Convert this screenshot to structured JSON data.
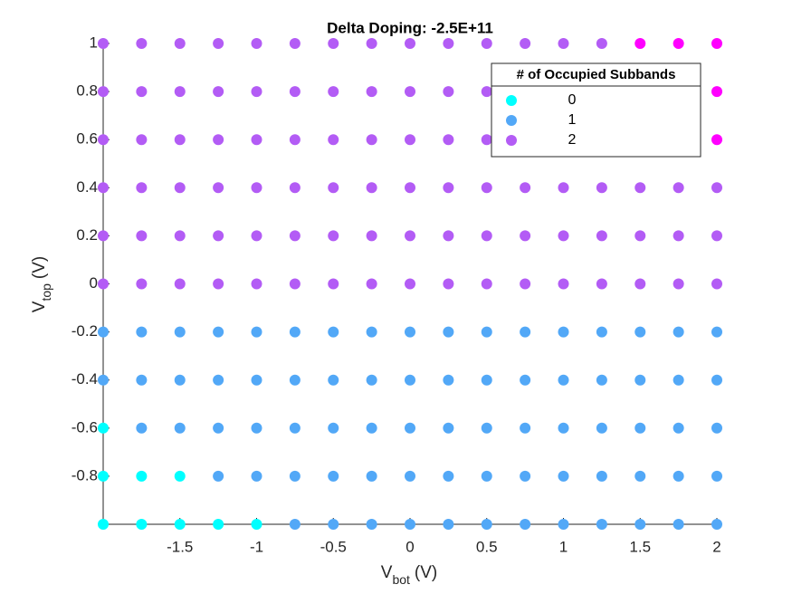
{
  "chart_data": {
    "type": "scatter",
    "title": "Delta Doping: -2.5E+11",
    "xlabel": "V",
    "xlabel_sub": "bot",
    "xlabel_unit": "(V)",
    "ylabel": "V",
    "ylabel_sub": "top",
    "ylabel_unit": "(V)",
    "xlim": [
      -2,
      2
    ],
    "ylim": [
      -1,
      1
    ],
    "xticks": [
      -1.5,
      -1,
      -0.5,
      0,
      0.5,
      1,
      1.5,
      2
    ],
    "yticks": [
      -0.8,
      -0.6,
      -0.4,
      -0.2,
      0,
      0.2,
      0.4,
      0.6,
      0.8,
      1
    ],
    "grid": false,
    "legend_title": "# of Occupied Subbands",
    "legend_corner": "northeast",
    "series": [
      {
        "name": "0",
        "color": "#00ffff",
        "x": [
          -2,
          -1.75,
          -1.5,
          -1.25,
          -1,
          -2,
          -1.75,
          -1.5,
          -2
        ],
        "y": [
          -1,
          -1,
          -1,
          -1,
          -1,
          -0.8,
          -0.8,
          -0.8,
          -0.6
        ]
      },
      {
        "name": "1",
        "color": "#52a8f7",
        "x": [
          -0.75,
          -0.5,
          -0.25,
          0,
          0.25,
          0.5,
          0.75,
          1,
          1.25,
          1.5,
          1.75,
          2,
          -1.25,
          -1,
          -0.75,
          -0.5,
          -0.25,
          0,
          0.25,
          0.5,
          0.75,
          1,
          1.25,
          1.5,
          1.75,
          2,
          -1.75,
          -1.5,
          -1.25,
          -1,
          -0.75,
          -0.5,
          -0.25,
          0,
          0.25,
          0.5,
          0.75,
          1,
          1.25,
          1.5,
          1.75,
          2,
          -2,
          -1.75,
          -1.5,
          -1.25,
          -1,
          -0.75,
          -0.5,
          -0.25,
          0,
          0.25,
          0.5,
          0.75,
          1,
          1.25,
          1.5,
          1.75,
          2,
          -2,
          -1.75,
          -1.5,
          -1.25,
          -1,
          -0.75,
          -0.5,
          -0.25,
          0,
          0.25,
          0.5,
          0.75,
          1,
          1.25,
          1.5,
          1.75,
          2
        ],
        "y": [
          -1,
          -1,
          -1,
          -1,
          -1,
          -1,
          -1,
          -1,
          -1,
          -1,
          -1,
          -1,
          -0.8,
          -0.8,
          -0.8,
          -0.8,
          -0.8,
          -0.8,
          -0.8,
          -0.8,
          -0.8,
          -0.8,
          -0.8,
          -0.8,
          -0.8,
          -0.8,
          -0.6,
          -0.6,
          -0.6,
          -0.6,
          -0.6,
          -0.6,
          -0.6,
          -0.6,
          -0.6,
          -0.6,
          -0.6,
          -0.6,
          -0.6,
          -0.6,
          -0.6,
          -0.6,
          -0.4,
          -0.4,
          -0.4,
          -0.4,
          -0.4,
          -0.4,
          -0.4,
          -0.4,
          -0.4,
          -0.4,
          -0.4,
          -0.4,
          -0.4,
          -0.4,
          -0.4,
          -0.4,
          -0.4,
          -0.2,
          -0.2,
          -0.2,
          -0.2,
          -0.2,
          -0.2,
          -0.2,
          -0.2,
          -0.2,
          -0.2,
          -0.2,
          -0.2,
          -0.2,
          -0.2,
          -0.2,
          -0.2,
          -0.2
        ]
      },
      {
        "name": "2",
        "color": "#b35cf5",
        "x": [
          -2,
          -1.75,
          -1.5,
          -1.25,
          -1,
          -0.75,
          -0.5,
          -0.25,
          0,
          0.25,
          0.5,
          0.75,
          1,
          1.25,
          1.5,
          1.75,
          2,
          -2,
          -1.75,
          -1.5,
          -1.25,
          -1,
          -0.75,
          -0.5,
          -0.25,
          0,
          0.25,
          0.5,
          0.75,
          1,
          1.25,
          1.5,
          1.75,
          2,
          -2,
          -1.75,
          -1.5,
          -1.25,
          -1,
          -0.75,
          -0.5,
          -0.25,
          0,
          0.25,
          0.5,
          0.75,
          1,
          1.25,
          1.5,
          1.75,
          2,
          -2,
          -1.75,
          -1.5,
          -1.25,
          -1,
          -0.75,
          -0.5,
          -0.25,
          0,
          0.25,
          0.5,
          0.75,
          1,
          1.25,
          1.5,
          1.75,
          -2,
          -1.75,
          -1.5,
          -1.25,
          -1,
          -0.75,
          -0.5,
          -0.25,
          0,
          0.25,
          0.5,
          0.75,
          1,
          1.25,
          1.5,
          1.75,
          -2,
          -1.75,
          -1.5,
          -1.25,
          -1,
          -0.75,
          -0.5,
          -0.25,
          0,
          0.25,
          0.5,
          0.75,
          1,
          1.25
        ],
        "y": [
          0,
          0,
          0,
          0,
          0,
          0,
          0,
          0,
          0,
          0,
          0,
          0,
          0,
          0,
          0,
          0,
          0,
          0.2,
          0.2,
          0.2,
          0.2,
          0.2,
          0.2,
          0.2,
          0.2,
          0.2,
          0.2,
          0.2,
          0.2,
          0.2,
          0.2,
          0.2,
          0.2,
          0.2,
          0.4,
          0.4,
          0.4,
          0.4,
          0.4,
          0.4,
          0.4,
          0.4,
          0.4,
          0.4,
          0.4,
          0.4,
          0.4,
          0.4,
          0.4,
          0.4,
          0.4,
          0.6,
          0.6,
          0.6,
          0.6,
          0.6,
          0.6,
          0.6,
          0.6,
          0.6,
          0.6,
          0.6,
          0.6,
          0.6,
          0.6,
          0.6,
          0.6,
          0.8,
          0.8,
          0.8,
          0.8,
          0.8,
          0.8,
          0.8,
          0.8,
          0.8,
          0.8,
          0.8,
          0.8,
          0.8,
          0.8,
          0.8,
          0.8,
          1,
          1,
          1,
          1,
          1,
          1,
          1,
          1,
          1,
          1,
          1,
          1,
          1,
          1
        ]
      },
      {
        "color": "#ff00ff",
        "x": [
          1.5,
          1.75,
          2,
          2,
          2
        ],
        "y": [
          1,
          1,
          1,
          0.8,
          0.6
        ]
      }
    ]
  }
}
